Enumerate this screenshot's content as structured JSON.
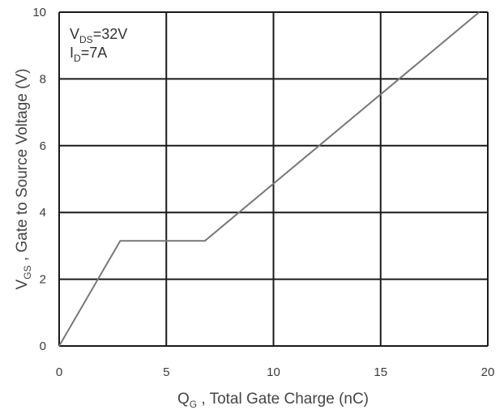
{
  "chart_data": {
    "type": "line",
    "x": [
      0,
      2.85,
      6.8,
      19.6
    ],
    "series": [
      {
        "values": [
          0,
          3.15,
          3.15,
          10.0
        ],
        "color": "#777777"
      }
    ],
    "xlim": [
      0,
      20
    ],
    "ylim": [
      0,
      10
    ],
    "x_ticks": [
      "0",
      "5",
      "10",
      "15",
      "20"
    ],
    "y_ticks": [
      "0",
      "2",
      "4",
      "6",
      "8",
      "10"
    ],
    "xlabel": {
      "main": "Q",
      "sub": "G",
      "rest": " , Total Gate Charge (nC)"
    },
    "ylabel": {
      "main": "V",
      "sub": "GS",
      "rest": " , Gate to Source Voltage (V)"
    },
    "annotations": {
      "line1": {
        "main": "V",
        "sub": "DS",
        "rest": "=32V"
      },
      "line2": {
        "main": "I",
        "sub": "D",
        "rest": "=7A"
      }
    },
    "grid": true,
    "grid_color": "#1a1a1a",
    "line_color": "#777777",
    "highlight_color": "#4a90c0"
  }
}
